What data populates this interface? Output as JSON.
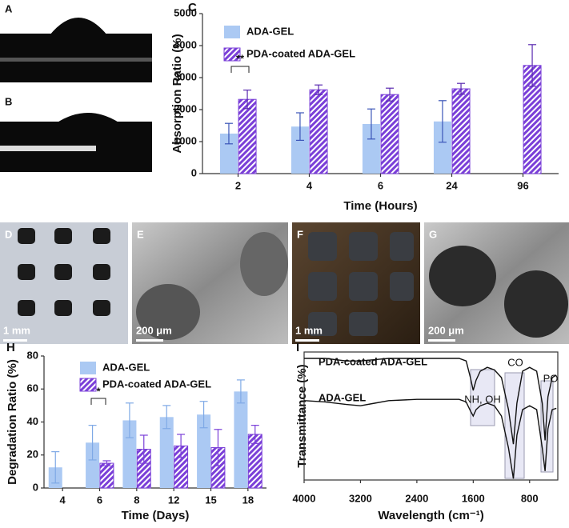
{
  "chart_data": [
    {
      "type": "bar",
      "label": "C",
      "xlabel": "Time (Hours)",
      "ylabel": "Absorption Ratio (%)",
      "categories": [
        "2",
        "4",
        "6",
        "24",
        "96"
      ],
      "series": [
        {
          "name": "ADA-GEL",
          "color": "#abc9f3",
          "error_color": "#3b55b8",
          "hatched": false,
          "values": [
            1250,
            1470,
            1550,
            1630,
            null
          ],
          "errors": [
            320,
            430,
            470,
            650,
            null
          ]
        },
        {
          "name": "PDA-coated ADA-GEL",
          "color": "#7a3fd8",
          "error_color": "#5a2ab0",
          "hatched": true,
          "values": [
            2320,
            2620,
            2470,
            2650,
            3380
          ],
          "errors": [
            290,
            150,
            200,
            170,
            650
          ]
        }
      ],
      "ylim": [
        0,
        5000
      ],
      "yticks": [
        0,
        1000,
        2000,
        3000,
        4000,
        5000
      ],
      "annotations": [
        {
          "text": "**"
        }
      ]
    },
    {
      "type": "bar",
      "label": "H",
      "xlabel": "Time (Days)",
      "ylabel": "Degradation Ratio (%)",
      "categories": [
        "4",
        "6",
        "8",
        "12",
        "15",
        "18"
      ],
      "series": [
        {
          "name": "ADA-GEL",
          "color": "#abc9f3",
          "error_color": "#7fa9e6",
          "hatched": false,
          "values": [
            12.5,
            27.5,
            41,
            43,
            44.5,
            58.5
          ],
          "errors": [
            9.5,
            10.5,
            10.5,
            7,
            8,
            7
          ]
        },
        {
          "name": "PDA-coated ADA-GEL",
          "color": "#7a3fd8",
          "error_color": "#7a3fd8",
          "hatched": true,
          "values": [
            null,
            15,
            23.5,
            25.5,
            24.5,
            32.5
          ],
          "errors": [
            null,
            1.5,
            8.5,
            7,
            11,
            5.5
          ]
        }
      ],
      "ylim": [
        0,
        80
      ],
      "yticks": [
        0,
        20,
        40,
        60,
        80
      ],
      "annotations": [
        {
          "text": "*"
        }
      ]
    },
    {
      "type": "line",
      "label": "I",
      "xlabel": "Wavelength (cm⁻¹)",
      "ylabel": "Transmittance (%)",
      "x": [
        4000,
        3700,
        3400,
        3200,
        3000,
        2800,
        2400,
        2000,
        1800,
        1700,
        1640,
        1600,
        1560,
        1500,
        1400,
        1300,
        1200,
        1100,
        1030,
        980,
        900,
        800,
        700,
        620,
        580,
        540,
        480,
        420
      ],
      "series": [
        {
          "name": "PDA-coated ADA-GEL",
          "color": "#111111",
          "values": [
            95,
            95,
            93,
            93,
            94,
            95,
            95,
            95,
            95,
            93,
            80,
            70,
            78,
            85,
            88,
            86,
            80,
            55,
            28,
            60,
            85,
            88,
            85,
            60,
            31,
            65,
            80,
            82
          ]
        },
        {
          "name": "ADA-GEL",
          "color": "#111111",
          "values": [
            62,
            61,
            59,
            58,
            60,
            62,
            63,
            63,
            63,
            61,
            54,
            50,
            55,
            58,
            60,
            58,
            50,
            25,
            1,
            35,
            55,
            58,
            55,
            25,
            7,
            40,
            55,
            56
          ]
        }
      ],
      "xlim": [
        4000,
        400
      ],
      "xticks": [
        4000,
        3200,
        2400,
        1600,
        800
      ],
      "ylim": [
        0,
        100
      ],
      "annotations": [
        {
          "text": "NH, OH"
        },
        {
          "text": "CO"
        },
        {
          "text": "PO"
        }
      ]
    }
  ],
  "images": [
    {
      "label": "A"
    },
    {
      "label": "B"
    },
    {
      "label": "D",
      "scale_bar": "1 mm"
    },
    {
      "label": "E",
      "scale_bar": "200 μm"
    },
    {
      "label": "F",
      "scale_bar": "1 mm"
    },
    {
      "label": "G",
      "scale_bar": "200 μm"
    }
  ]
}
